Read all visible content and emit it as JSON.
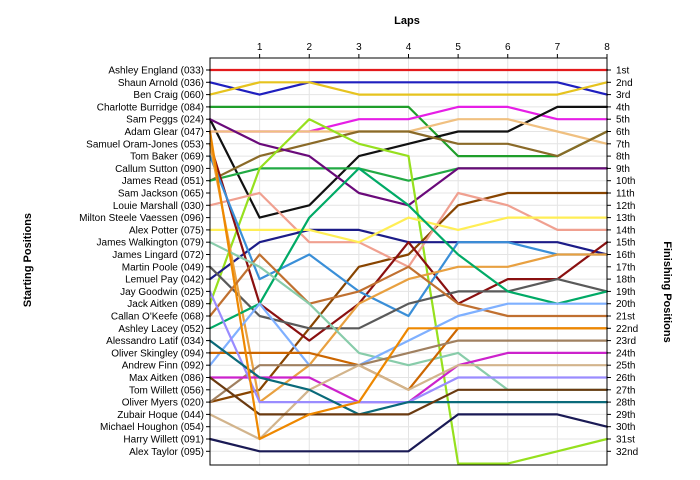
{
  "chart_data": {
    "type": "line",
    "title": "Laps",
    "ylabel_left": "Starting Positions",
    "ylabel_right": "Finishing Positions",
    "x_ticks": [
      "1",
      "2",
      "3",
      "4",
      "5",
      "6",
      "7",
      "8"
    ],
    "grid": true,
    "drivers": [
      "Ashley England (033)",
      "Shaun Arnold (036)",
      "Ben Craig (060)",
      "Charlotte Burridge (084)",
      "Sam Peggs (024)",
      "Adam Glear (047)",
      "Samuel Oram-Jones (053)",
      "Tom Baker (069)",
      "Callum Sutton (090)",
      "James Read (051)",
      "Sam Jackson (065)",
      "Louie Marshall (030)",
      "Milton Steele Vaessen (096)",
      "Alex Potter (075)",
      "James Walkington (079)",
      "James Lingard (072)",
      "Martin Poole (049)",
      "Lemuel Pay (042)",
      "Jay Goodwin (025)",
      "Jack Aitken (089)",
      "Callan O'Keefe (068)",
      "Ashley Lacey (052)",
      "Alessandro Latif (034)",
      "Oliver Skingley (094)",
      "Andrew Finn (092)",
      "Max Aitken (086)",
      "Tom Willett (056)",
      "Oliver Myers (020)",
      "Zubair Hoque (044)",
      "Michael Houghon (054)",
      "Harry Willett (091)",
      "Alex Taylor (095)"
    ],
    "finish_labels": [
      "1st",
      "2nd",
      "3rd",
      "4th",
      "5th",
      "6th",
      "7th",
      "8th",
      "9th",
      "10th",
      "11th",
      "12th",
      "13th",
      "14th",
      "15th",
      "16th",
      "17th",
      "18th",
      "19th",
      "20th",
      "21st",
      "22nd",
      "23rd",
      "24th",
      "25th",
      "26th",
      "27th",
      "28th",
      "29th",
      "30th",
      "31st",
      "32nd"
    ],
    "series": [
      {
        "color": "#e31a1c",
        "positions": [
          1,
          1,
          1,
          1,
          1,
          1,
          1,
          1,
          1
        ]
      },
      {
        "color": "#1f1fbf",
        "positions": [
          2,
          3,
          2,
          2,
          2,
          2,
          2,
          2,
          3
        ]
      },
      {
        "color": "#e6c31e",
        "positions": [
          3,
          2,
          2,
          3,
          3,
          3,
          3,
          3,
          2
        ]
      },
      {
        "color": "#1f9e2a",
        "positions": [
          4,
          4,
          4,
          4,
          4,
          8,
          8,
          8,
          6
        ]
      },
      {
        "color": "#e61ee6",
        "positions": [
          6,
          6,
          6,
          5,
          5,
          4,
          4,
          5,
          5
        ]
      },
      {
        "color": "#111111",
        "positions": [
          5,
          13,
          12,
          8,
          7,
          6,
          6,
          4,
          4
        ]
      },
      {
        "color": "#f0c080",
        "positions": [
          6,
          6,
          6,
          6,
          6,
          5,
          5,
          6,
          7
        ]
      },
      {
        "color": "#8a6a28",
        "positions": [
          10,
          8,
          7,
          6,
          6,
          7,
          7,
          8,
          6
        ]
      },
      {
        "color": "#22aa44",
        "positions": [
          10,
          9,
          9,
          9,
          10,
          9,
          9,
          9,
          9
        ]
      },
      {
        "color": "#6a0a7a",
        "positions": [
          5,
          7,
          8,
          11,
          12,
          9,
          9,
          9,
          9
        ]
      },
      {
        "color": "#96e01e",
        "positions": [
          20,
          9,
          5,
          7,
          8,
          33,
          33,
          32,
          31
        ]
      },
      {
        "color": "#884400",
        "positions": [
          28,
          27,
          22,
          17,
          16,
          12,
          11,
          11,
          11
        ]
      },
      {
        "color": "#f0a090",
        "positions": [
          12,
          11,
          15,
          15,
          17,
          11,
          12,
          14,
          14
        ]
      },
      {
        "color": "#1c1c88",
        "positions": [
          18,
          15,
          14,
          14,
          15,
          15,
          15,
          15,
          16
        ]
      },
      {
        "color": "#ffee55",
        "positions": [
          14,
          14,
          14,
          15,
          13,
          14,
          13,
          13,
          13
        ]
      },
      {
        "color": "#8a1010",
        "positions": [
          7,
          20,
          23,
          20,
          15,
          20,
          18,
          18,
          15
        ]
      },
      {
        "color": "#3a8fd8",
        "positions": [
          8,
          18,
          16,
          19,
          21,
          15,
          15,
          16,
          16
        ]
      },
      {
        "color": "#5a5a5a",
        "positions": [
          17,
          21,
          22,
          22,
          20,
          19,
          19,
          18,
          19
        ]
      },
      {
        "color": "#e8a040",
        "positions": [
          7,
          28,
          25,
          20,
          18,
          17,
          17,
          16,
          16
        ]
      },
      {
        "color": "#00aa66",
        "positions": [
          22,
          20,
          13,
          9,
          12,
          16,
          19,
          20,
          19
        ]
      },
      {
        "color": "#c07030",
        "positions": [
          21,
          16,
          20,
          19,
          17,
          20,
          21,
          21,
          21
        ]
      },
      {
        "color": "#88ccaa",
        "positions": [
          15,
          17,
          20,
          24,
          25,
          24,
          27,
          27,
          27
        ]
      },
      {
        "color": "#7fb0ff",
        "positions": [
          25,
          20,
          25,
          25,
          23,
          21,
          20,
          20,
          20
        ]
      },
      {
        "color": "#cc6600",
        "positions": [
          24,
          24,
          24,
          25,
          27,
          22,
          22,
          22,
          22
        ]
      },
      {
        "color": "#a08060",
        "positions": [
          28,
          25,
          25,
          25,
          24,
          23,
          23,
          23,
          23
        ]
      },
      {
        "color": "#cc22cc",
        "positions": [
          26,
          26,
          26,
          28,
          28,
          25,
          24,
          24,
          24
        ]
      },
      {
        "color": "#d2b48c",
        "positions": [
          29,
          31,
          27,
          25,
          27,
          25,
          25,
          25,
          25
        ]
      },
      {
        "color": "#9a8cff",
        "positions": [
          19,
          28,
          28,
          28,
          28,
          26,
          26,
          26,
          26
        ]
      },
      {
        "color": "#0a6a7a",
        "positions": [
          23,
          26,
          27,
          29,
          28,
          28,
          28,
          28,
          28
        ]
      },
      {
        "color": "#6a3a10",
        "positions": [
          26,
          29,
          29,
          29,
          29,
          27,
          27,
          27,
          27
        ]
      },
      {
        "color": "#ee8800",
        "positions": [
          6,
          31,
          29,
          28,
          22,
          22,
          22,
          22,
          22
        ]
      },
      {
        "color": "#1a1a55",
        "positions": [
          31,
          32,
          32,
          32,
          32,
          29,
          29,
          29,
          30
        ]
      }
    ]
  }
}
